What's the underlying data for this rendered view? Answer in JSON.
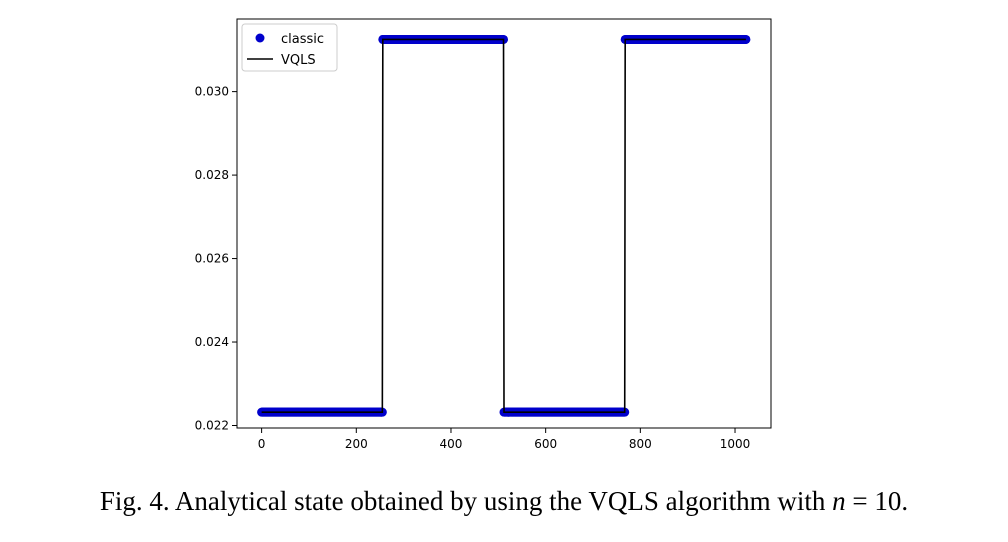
{
  "chart_data": {
    "type": "line",
    "title": "",
    "xlabel": "",
    "ylabel": "",
    "xlim": [
      -52,
      1076
    ],
    "ylim": [
      0.02194,
      0.03174
    ],
    "xticks": [
      0,
      200,
      400,
      600,
      800,
      1000
    ],
    "xtick_labels": [
      "0",
      "200",
      "400",
      "600",
      "800",
      "1000"
    ],
    "yticks": [
      0.022,
      0.024,
      0.026,
      0.028,
      0.03
    ],
    "ytick_labels": [
      "0.022",
      "0.024",
      "0.026",
      "0.028",
      "0.030"
    ],
    "grid": false,
    "legend_position": "top-left",
    "series": [
      {
        "name": "classic",
        "style": "markers",
        "color": "#0000cc",
        "segments": [
          {
            "x_start": 0,
            "x_end": 255,
            "y": 0.02232
          },
          {
            "x_start": 256,
            "x_end": 511,
            "y": 0.03125
          },
          {
            "x_start": 512,
            "x_end": 767,
            "y": 0.02232
          },
          {
            "x_start": 768,
            "x_end": 1023,
            "y": 0.03125
          }
        ]
      },
      {
        "name": "VQLS",
        "style": "line",
        "color": "#000000",
        "segments": [
          {
            "x_start": 0,
            "x_end": 255,
            "y": 0.02232
          },
          {
            "x_start": 256,
            "x_end": 511,
            "y": 0.03125
          },
          {
            "x_start": 512,
            "x_end": 767,
            "y": 0.02232
          },
          {
            "x_start": 768,
            "x_end": 1023,
            "y": 0.03125
          }
        ]
      }
    ]
  },
  "caption": {
    "prefix": "Fig. 4. Analytical state obtained by using the VQLS algorithm with ",
    "var": "n",
    "suffix": " = 10."
  }
}
